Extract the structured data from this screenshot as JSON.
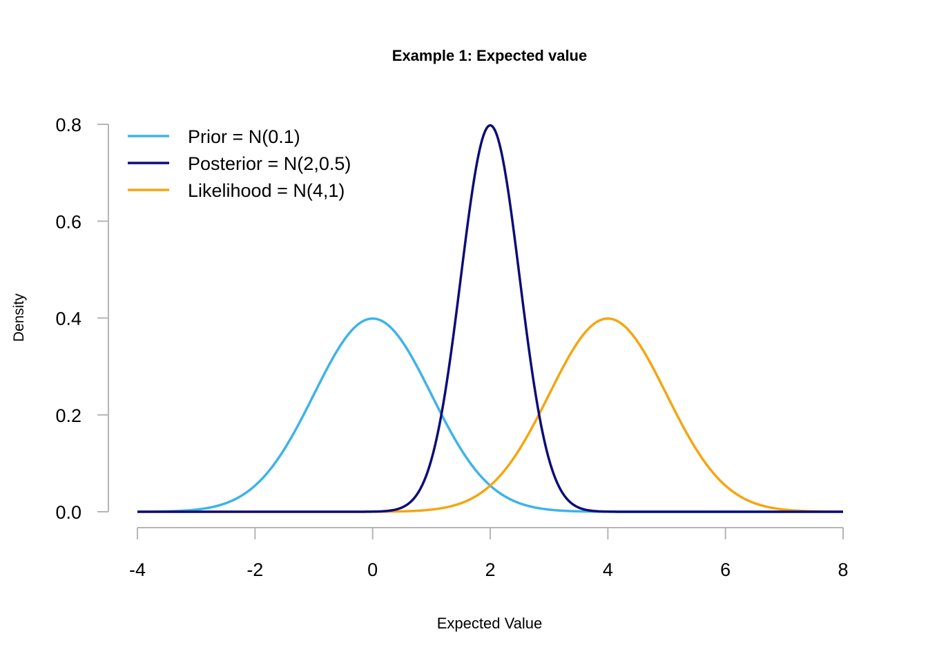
{
  "chart_data": {
    "type": "line",
    "title": "Example 1: Expected value",
    "xlabel": "Expected Value",
    "ylabel": "Density",
    "xlim": [
      -4,
      8
    ],
    "ylim": [
      0,
      0.8
    ],
    "x_ticks": [
      "-4",
      "-2",
      "0",
      "2",
      "4",
      "6",
      "8"
    ],
    "y_ticks": [
      "0.0",
      "0.2",
      "0.4",
      "0.6",
      "0.8"
    ],
    "grid": false,
    "legend_position": "top-left",
    "series": [
      {
        "name": "Prior = N(0.1)",
        "distribution": "normal",
        "mean": 0,
        "sd": 1,
        "color": "#3db3ea",
        "peak_density": 0.4
      },
      {
        "name": "Likelihood = N(4,1)",
        "distribution": "normal",
        "mean": 4,
        "sd": 1,
        "color": "#f5a511",
        "peak_density": 0.4
      },
      {
        "name": "Posterior = N(2,0.5)",
        "distribution": "normal",
        "mean": 2,
        "sd": 0.5,
        "color": "#0c0c78",
        "peak_density": 0.8
      }
    ],
    "legend_order": [
      "Prior = N(0.1)",
      "Posterior = N(2,0.5)",
      "Likelihood = N(4,1)"
    ]
  }
}
